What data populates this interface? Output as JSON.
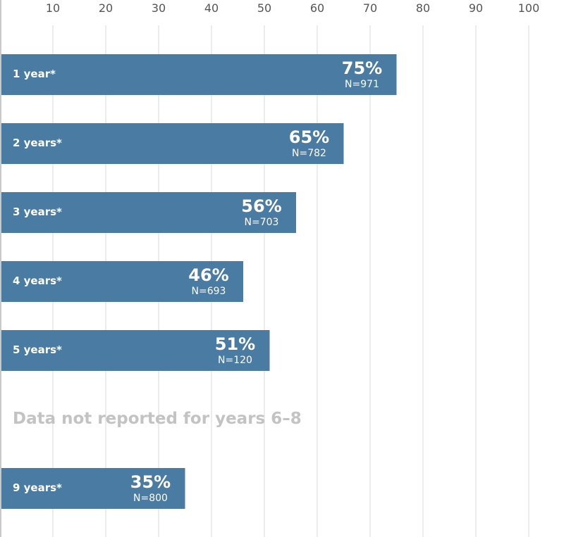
{
  "chart_data": {
    "type": "bar",
    "orientation": "horizontal",
    "xlim": [
      0,
      100
    ],
    "x_ticks": [
      10,
      20,
      30,
      40,
      50,
      60,
      70,
      80,
      90,
      100
    ],
    "x_tick_position": "top",
    "grid": true,
    "categories": [
      "1 year*",
      "2 years*",
      "3 years*",
      "4 years*",
      "5 years*",
      "9 years*"
    ],
    "values": [
      75,
      65,
      56,
      46,
      51,
      35
    ],
    "value_labels": [
      "75%",
      "65%",
      "56%",
      "46%",
      "51%",
      "35%"
    ],
    "n_labels": [
      "N=971",
      "N=782",
      "N=703",
      "N=693",
      "N=120",
      "N=800"
    ],
    "annotation": "Data not reported for years 6–8",
    "colors": {
      "bar": "#4a7ba2",
      "grid": "#d8d8d8",
      "annotation": "#c3c3c3",
      "tick": "#555555"
    }
  }
}
